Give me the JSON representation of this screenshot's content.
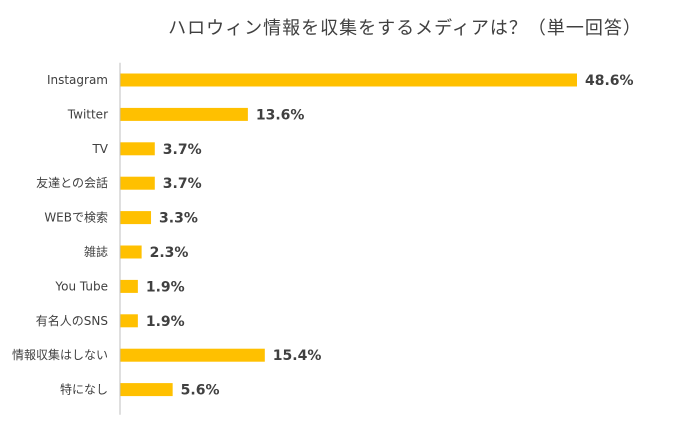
{
  "chart_data": {
    "type": "bar",
    "orientation": "horizontal",
    "title": "ハロウィン情報を収集をするメディアは？（単一回答）",
    "categories": [
      "Instagram",
      "Twitter",
      "TV",
      "友達との会話",
      "WEBで検索",
      "雑誌",
      "You Tube",
      "有名人のSNS",
      "情報収集はしない",
      "特になし"
    ],
    "values": [
      48.6,
      13.6,
      3.7,
      3.7,
      3.3,
      2.3,
      1.9,
      1.9,
      15.4,
      5.6
    ],
    "value_labels": [
      "48.6%",
      "13.6%",
      "3.7%",
      "3.7%",
      "3.3%",
      "2.3%",
      "1.9%",
      "1.9%",
      "15.4%",
      "5.6%"
    ],
    "unit": "%",
    "xlim": [
      0,
      50
    ],
    "grid": false,
    "legend": "none",
    "bar_color": "#FFC000",
    "axis_color": "#BFBFBF",
    "text_color": "#404040"
  }
}
